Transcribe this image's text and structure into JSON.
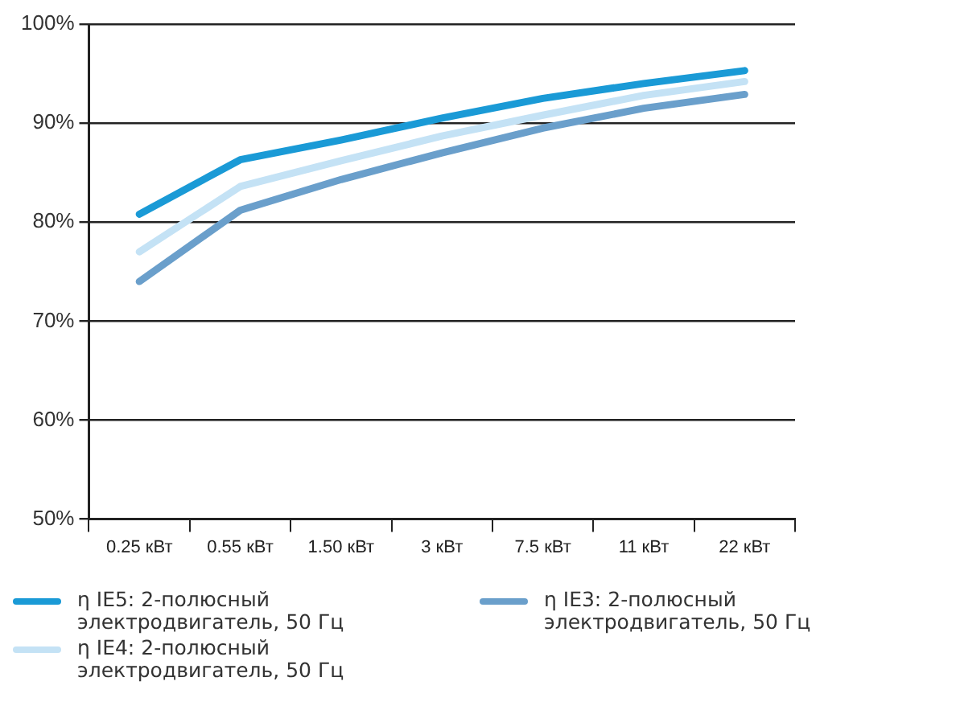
{
  "chart_data": {
    "type": "line",
    "categories": [
      "0.25 кВт",
      "0.55 кВт",
      "1.50 кВт",
      "3 кВт",
      "7.5 кВт",
      "11 кВт",
      "22 кВт"
    ],
    "series": [
      {
        "name": "η IE5: 2-полюсный электродвигатель, 50 Гц",
        "color": "#1a9ad6",
        "values": [
          80.8,
          86.3,
          88.3,
          90.5,
          92.5,
          94.0,
          95.3
        ]
      },
      {
        "name": "η IE4: 2-полюсный электродвигатель, 50 Гц",
        "color": "#c4e2f5",
        "values": [
          77.0,
          83.6,
          86.2,
          88.7,
          90.8,
          92.8,
          94.2
        ]
      },
      {
        "name": "η IE3: 2-полюсный электродвигатель, 50 Гц",
        "color": "#6a9fcb",
        "values": [
          74.0,
          81.2,
          84.3,
          87.0,
          89.5,
          91.5,
          92.9
        ]
      }
    ],
    "ylim": [
      50,
      100
    ],
    "yticks": [
      {
        "value": 50,
        "label": "50%"
      },
      {
        "value": 60,
        "label": "60%"
      },
      {
        "value": 70,
        "label": "70%"
      },
      {
        "value": 80,
        "label": "80%"
      },
      {
        "value": 90,
        "label": "90%"
      },
      {
        "value": 100,
        "label": "100%"
      }
    ],
    "grid": "y",
    "legend": "bottom",
    "marker": "none",
    "line_style": "solid"
  }
}
